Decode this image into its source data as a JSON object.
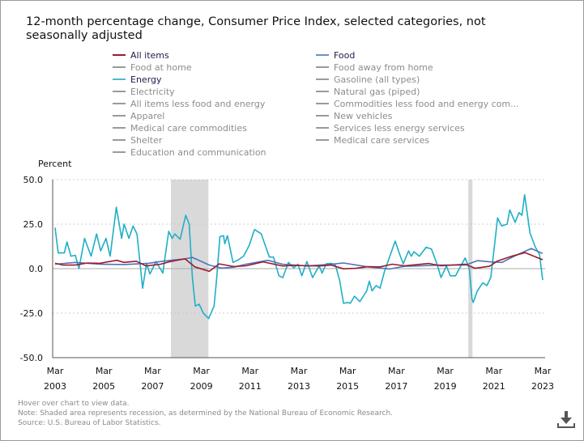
{
  "chart_data": {
    "type": "line",
    "title": "12-month percentage change, Consumer Price Index, selected categories, not seasonally adjusted",
    "ylabel": "Percent",
    "xlabel": "",
    "ylim": [
      -50,
      50
    ],
    "xlim": [
      2003.17,
      2023.17
    ],
    "y_ticks": [
      "50.0",
      "25.0",
      "0.0",
      "-25.0",
      "-50.0"
    ],
    "y_tick_values": [
      50,
      25,
      0,
      -25,
      -50
    ],
    "x_ticks": [
      {
        "month": "Mar",
        "year": "2003",
        "value": 2003.17
      },
      {
        "month": "Mar",
        "year": "2005",
        "value": 2005.17
      },
      {
        "month": "Mar",
        "year": "2007",
        "value": 2007.17
      },
      {
        "month": "Mar",
        "year": "2009",
        "value": 2009.17
      },
      {
        "month": "Mar",
        "year": "2011",
        "value": 2011.17
      },
      {
        "month": "Mar",
        "year": "2013",
        "value": 2013.17
      },
      {
        "month": "Mar",
        "year": "2015",
        "value": 2015.17
      },
      {
        "month": "Mar",
        "year": "2017",
        "value": 2017.17
      },
      {
        "month": "Mar",
        "year": "2019",
        "value": 2019.17
      },
      {
        "month": "Mar",
        "year": "2021",
        "value": 2021.17
      },
      {
        "month": "Mar",
        "year": "2023",
        "value": 2023.17
      }
    ],
    "grid": true,
    "recessions": [
      [
        2007.92,
        2009.46
      ],
      [
        2020.12,
        2020.29
      ]
    ],
    "series": [
      {
        "name": "Energy",
        "color": "#1fafc6",
        "points": [
          [
            2003.17,
            23
          ],
          [
            2003.3,
            8.8
          ],
          [
            2003.55,
            8.8
          ],
          [
            2003.66,
            15
          ],
          [
            2003.82,
            7
          ],
          [
            2004.0,
            7.5
          ],
          [
            2004.15,
            0
          ],
          [
            2004.38,
            17
          ],
          [
            2004.65,
            7
          ],
          [
            2004.87,
            19.5
          ],
          [
            2005.04,
            10
          ],
          [
            2005.26,
            17
          ],
          [
            2005.43,
            7
          ],
          [
            2005.68,
            34.5
          ],
          [
            2005.9,
            17
          ],
          [
            2006.0,
            25
          ],
          [
            2006.2,
            17
          ],
          [
            2006.37,
            24
          ],
          [
            2006.53,
            19.5
          ],
          [
            2006.76,
            -11
          ],
          [
            2006.92,
            3
          ],
          [
            2007.06,
            -3
          ],
          [
            2007.31,
            4
          ],
          [
            2007.59,
            -2.5
          ],
          [
            2007.83,
            21
          ],
          [
            2007.97,
            17
          ],
          [
            2008.08,
            19.5
          ],
          [
            2008.3,
            16.5
          ],
          [
            2008.53,
            30
          ],
          [
            2008.67,
            25
          ],
          [
            2008.8,
            -5
          ],
          [
            2008.92,
            -21
          ],
          [
            2009.08,
            -20
          ],
          [
            2009.25,
            -25
          ],
          [
            2009.47,
            -28
          ],
          [
            2009.69,
            -21
          ],
          [
            2009.8,
            -5
          ],
          [
            2009.93,
            18
          ],
          [
            2010.08,
            18.5
          ],
          [
            2010.13,
            14
          ],
          [
            2010.24,
            18.5
          ],
          [
            2010.47,
            3.5
          ],
          [
            2010.69,
            5
          ],
          [
            2010.9,
            7
          ],
          [
            2011.13,
            13
          ],
          [
            2011.35,
            22
          ],
          [
            2011.63,
            19.5
          ],
          [
            2011.79,
            13
          ],
          [
            2011.96,
            6.5
          ],
          [
            2012.13,
            6.5
          ],
          [
            2012.35,
            -4
          ],
          [
            2012.51,
            -5
          ],
          [
            2012.74,
            3.5
          ],
          [
            2012.96,
            0.5
          ],
          [
            2013.13,
            2.5
          ],
          [
            2013.29,
            -4
          ],
          [
            2013.5,
            4
          ],
          [
            2013.73,
            -5
          ],
          [
            2014.0,
            1.5
          ],
          [
            2014.12,
            -2.5
          ],
          [
            2014.29,
            2.7
          ],
          [
            2014.5,
            3
          ],
          [
            2014.67,
            2
          ],
          [
            2014.84,
            -6.5
          ],
          [
            2015.0,
            -19.5
          ],
          [
            2015.17,
            -19
          ],
          [
            2015.28,
            -19.5
          ],
          [
            2015.45,
            -15.5
          ],
          [
            2015.67,
            -18.5
          ],
          [
            2015.95,
            -12.5
          ],
          [
            2016.06,
            -7
          ],
          [
            2016.17,
            -12.5
          ],
          [
            2016.34,
            -9.5
          ],
          [
            2016.5,
            -11
          ],
          [
            2016.67,
            -2
          ],
          [
            2016.9,
            7
          ],
          [
            2017.12,
            15.5
          ],
          [
            2017.28,
            9
          ],
          [
            2017.45,
            2.7
          ],
          [
            2017.67,
            10
          ],
          [
            2017.78,
            7
          ],
          [
            2017.89,
            9.5
          ],
          [
            2018.11,
            7
          ],
          [
            2018.39,
            12
          ],
          [
            2018.61,
            11
          ],
          [
            2018.83,
            2.7
          ],
          [
            2019.0,
            -5
          ],
          [
            2019.22,
            1.5
          ],
          [
            2019.38,
            -4
          ],
          [
            2019.6,
            -4
          ],
          [
            2019.77,
            0.5
          ],
          [
            2019.99,
            6
          ],
          [
            2020.16,
            0
          ],
          [
            2020.27,
            -17
          ],
          [
            2020.32,
            -19
          ],
          [
            2020.49,
            -12.5
          ],
          [
            2020.71,
            -8
          ],
          [
            2020.88,
            -9.5
          ],
          [
            2021.04,
            -5
          ],
          [
            2021.21,
            15
          ],
          [
            2021.32,
            28.5
          ],
          [
            2021.49,
            24
          ],
          [
            2021.71,
            25
          ],
          [
            2021.82,
            33
          ],
          [
            2022.04,
            26
          ],
          [
            2022.2,
            31.5
          ],
          [
            2022.32,
            30
          ],
          [
            2022.43,
            41.5
          ],
          [
            2022.65,
            20
          ],
          [
            2022.87,
            12
          ],
          [
            2023.04,
            8
          ],
          [
            2023.17,
            -6.4
          ]
        ]
      },
      {
        "name": "Food",
        "color": "#4f72b8",
        "points": [
          [
            2003.17,
            2.5
          ],
          [
            2004.0,
            3.5
          ],
          [
            2005.0,
            2.5
          ],
          [
            2006.0,
            2.3
          ],
          [
            2007.0,
            3
          ],
          [
            2007.5,
            4
          ],
          [
            2008.0,
            4.8
          ],
          [
            2008.5,
            5.5
          ],
          [
            2008.8,
            6.3
          ],
          [
            2009.5,
            2
          ],
          [
            2010.0,
            0.3
          ],
          [
            2010.5,
            0.8
          ],
          [
            2011.0,
            2.5
          ],
          [
            2011.9,
            4.7
          ],
          [
            2012.5,
            2.5
          ],
          [
            2013.5,
            1.5
          ],
          [
            2014.5,
            2.5
          ],
          [
            2015.0,
            3.2
          ],
          [
            2016.0,
            1
          ],
          [
            2016.9,
            -0.2
          ],
          [
            2017.5,
            1.3
          ],
          [
            2018.0,
            1.5
          ],
          [
            2019.0,
            2
          ],
          [
            2020.0,
            2
          ],
          [
            2020.5,
            4.5
          ],
          [
            2021.0,
            3.8
          ],
          [
            2021.5,
            3.5
          ],
          [
            2022.0,
            7
          ],
          [
            2022.7,
            11.3
          ],
          [
            2023.17,
            8.5
          ]
        ]
      },
      {
        "name": "All items",
        "color": "#9b1b2e",
        "points": [
          [
            2003.17,
            3
          ],
          [
            2003.5,
            2
          ],
          [
            2004.0,
            2
          ],
          [
            2004.5,
            3.2
          ],
          [
            2005.0,
            3
          ],
          [
            2005.7,
            4.7
          ],
          [
            2006.0,
            3.5
          ],
          [
            2006.5,
            4.2
          ],
          [
            2006.9,
            1.5
          ],
          [
            2007.5,
            2.5
          ],
          [
            2007.9,
            4
          ],
          [
            2008.5,
            5.5
          ],
          [
            2008.9,
            1
          ],
          [
            2009.5,
            -1.5
          ],
          [
            2009.9,
            2.7
          ],
          [
            2010.5,
            1.2
          ],
          [
            2011.0,
            1.6
          ],
          [
            2011.7,
            3.8
          ],
          [
            2012.5,
            1.5
          ],
          [
            2013.0,
            1.8
          ],
          [
            2014.0,
            1.5
          ],
          [
            2014.5,
            2
          ],
          [
            2015.0,
            -0.1
          ],
          [
            2015.5,
            0.2
          ],
          [
            2016.0,
            1.1
          ],
          [
            2016.5,
            1
          ],
          [
            2017.0,
            2.5
          ],
          [
            2017.5,
            1.6
          ],
          [
            2018.5,
            2.9
          ],
          [
            2019.0,
            1.6
          ],
          [
            2020.0,
            2.5
          ],
          [
            2020.4,
            0.2
          ],
          [
            2021.0,
            1.4
          ],
          [
            2021.3,
            4.2
          ],
          [
            2021.9,
            7
          ],
          [
            2022.45,
            9
          ],
          [
            2022.9,
            6.5
          ],
          [
            2023.17,
            5
          ]
        ]
      }
    ],
    "legend": [
      {
        "label": "All items",
        "color": "#9b1b2e",
        "active": true
      },
      {
        "label": "Food",
        "color": "#6a93c2",
        "active": true
      },
      {
        "label": "Food at home",
        "color": "#9a9a9a",
        "active": false
      },
      {
        "label": "Food away from home",
        "color": "#9a9a9a",
        "active": false
      },
      {
        "label": "Energy",
        "color": "#4fb9d1",
        "active": true
      },
      {
        "label": "Gasoline (all types)",
        "color": "#9a9a9a",
        "active": false
      },
      {
        "label": "Electricity",
        "color": "#9a9a9a",
        "active": false
      },
      {
        "label": "Natural gas (piped)",
        "color": "#9a9a9a",
        "active": false
      },
      {
        "label": "All items less food and energy",
        "color": "#9a9a9a",
        "active": false
      },
      {
        "label": "Commodities less food and energy com...",
        "color": "#9a9a9a",
        "active": false
      },
      {
        "label": "Apparel",
        "color": "#9a9a9a",
        "active": false
      },
      {
        "label": "New vehicles",
        "color": "#9a9a9a",
        "active": false
      },
      {
        "label": "Medical care commodities",
        "color": "#9a9a9a",
        "active": false
      },
      {
        "label": "Services less energy services",
        "color": "#9a9a9a",
        "active": false
      },
      {
        "label": "Shelter",
        "color": "#9a9a9a",
        "active": false
      },
      {
        "label": "Medical care services",
        "color": "#9a9a9a",
        "active": false
      },
      {
        "label": "Education and communication",
        "color": "#9a9a9a",
        "active": false
      }
    ],
    "legend_placement": "top"
  },
  "notes": {
    "hover": "Hover over chart to view data.",
    "note": "Note: Shaded area represents recession, as determined by the National Bureau of Economic Research.",
    "source": "Source: U.S. Bureau of Labor Statistics."
  },
  "download_icon": "download-icon"
}
